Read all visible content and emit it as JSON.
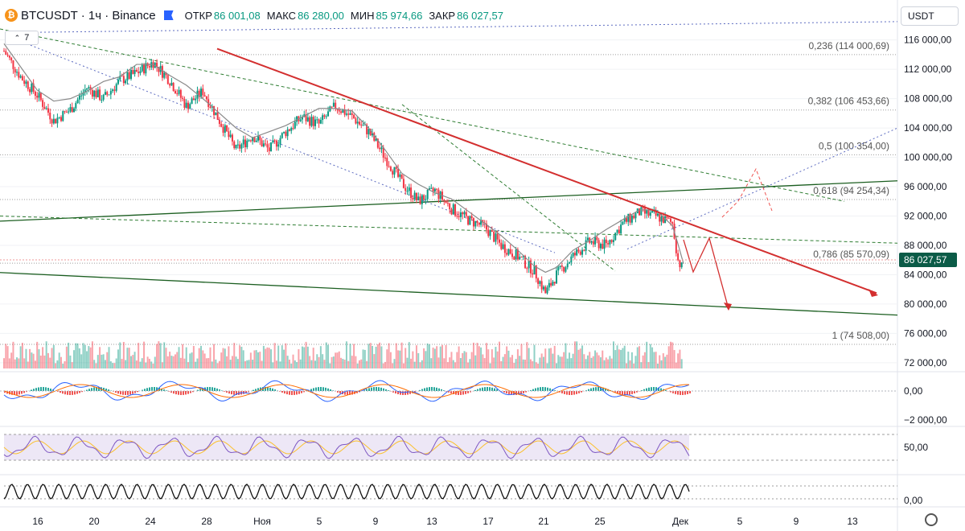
{
  "header": {
    "symbol": "BTCUSDT · 1ч · Binance",
    "open_label": "ОТКР",
    "open": "86 001,08",
    "high_label": "МАКС",
    "high": "86 280,00",
    "low_label": "МИН",
    "low": "85 974,66",
    "close_label": "ЗАКР",
    "close": "86 027,57"
  },
  "indicator_toggle": "7",
  "currency": "USDT",
  "chart_data": {
    "type": "candlestick",
    "price_axis_ticks": [
      "116 000,00",
      "112 000,00",
      "108 000,00",
      "104 000,00",
      "100 000,00",
      "96 000,00",
      "92 000,00",
      "88 000,00",
      "84 000,00",
      "80 000,00",
      "76 000,00",
      "72 000,00"
    ],
    "price_range": [
      71000,
      117500
    ],
    "last_price": "86 027,57",
    "time_axis_ticks": [
      "16",
      "20",
      "24",
      "28",
      "Ноя",
      "5",
      "9",
      "13",
      "17",
      "21",
      "25",
      "Дек",
      "5",
      "9",
      "13"
    ],
    "fibonacci_levels": [
      {
        "label": "0,236 (114 000,69)",
        "price": 114000.69
      },
      {
        "label": "0,382 (106 453,66)",
        "price": 106453.66
      },
      {
        "label": "0,5 (100 354,00)",
        "price": 100354.0
      },
      {
        "label": "0,618 (94 254,34)",
        "price": 94254.34
      },
      {
        "label": "0,786 (85 570,09)",
        "price": 85570.09
      },
      {
        "label": "1 (74 508,00)",
        "price": 74508.0
      }
    ],
    "macd_axis_ticks": [
      "0,00",
      "−2 000,00"
    ],
    "rsi_axis_ticks": [
      "50,00"
    ],
    "stoch_axis_ticks": [
      "0,00"
    ],
    "price_path": [
      [
        0,
        114500
      ],
      [
        3,
        111000
      ],
      [
        6,
        108500
      ],
      [
        9,
        105000
      ],
      [
        12,
        106500
      ],
      [
        15,
        109500
      ],
      [
        18,
        108000
      ],
      [
        21,
        110500
      ],
      [
        24,
        111500
      ],
      [
        27,
        113000
      ],
      [
        30,
        110500
      ],
      [
        33,
        107000
      ],
      [
        36,
        109000
      ],
      [
        39,
        105000
      ],
      [
        42,
        101000
      ],
      [
        45,
        103000
      ],
      [
        48,
        101000
      ],
      [
        51,
        103500
      ],
      [
        54,
        105500
      ],
      [
        57,
        104500
      ],
      [
        60,
        107000
      ],
      [
        63,
        105500
      ],
      [
        66,
        103500
      ],
      [
        69,
        100000
      ],
      [
        72,
        96500
      ],
      [
        75,
        94000
      ],
      [
        78,
        95500
      ],
      [
        81,
        93000
      ],
      [
        84,
        91500
      ],
      [
        87,
        90500
      ],
      [
        90,
        88000
      ],
      [
        93,
        86500
      ],
      [
        96,
        84500
      ],
      [
        98,
        81500
      ],
      [
        100,
        84000
      ],
      [
        103,
        86500
      ],
      [
        106,
        88500
      ],
      [
        109,
        88000
      ],
      [
        112,
        91000
      ],
      [
        115,
        92500
      ],
      [
        118,
        92000
      ],
      [
        121,
        91000
      ],
      [
        122,
        86000
      ],
      [
        123,
        84500
      ]
    ],
    "colors": {
      "up": "#089981",
      "down": "#f23645",
      "resistance_line": "#d32f2f",
      "support_line": "#1b5e20",
      "sma": "#8a8a8a",
      "rsi_band": "#7e57c2"
    }
  }
}
